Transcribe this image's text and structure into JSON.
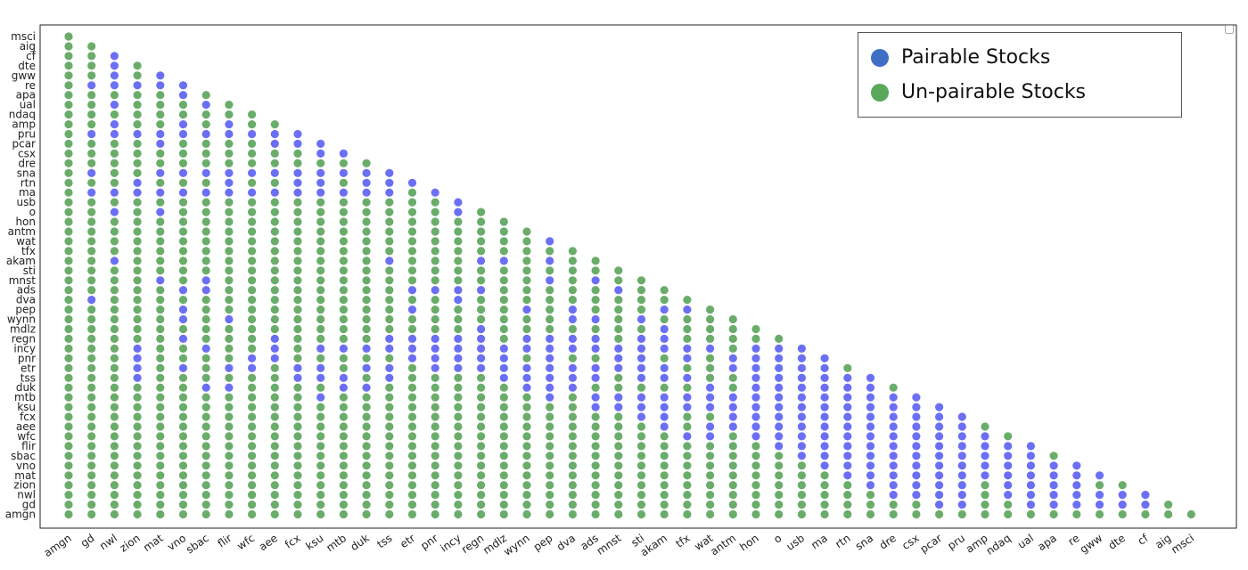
{
  "chart_data": {
    "type": "scatter",
    "title": "",
    "xlabel": "",
    "ylabel": "",
    "grid": false,
    "legend_placement": "top-right",
    "x_categories": [
      "amgn",
      "gd",
      "nwl",
      "zion",
      "mat",
      "vno",
      "sbac",
      "flir",
      "wfc",
      "aee",
      "fcx",
      "ksu",
      "mtb",
      "duk",
      "tss",
      "etr",
      "pnr",
      "incy",
      "regn",
      "mdlz",
      "wynn",
      "pep",
      "dva",
      "ads",
      "mnst",
      "sti",
      "akam",
      "tfx",
      "wat",
      "antm",
      "hon",
      "o",
      "usb",
      "ma",
      "rtn",
      "sna",
      "dre",
      "csx",
      "pcar",
      "pru",
      "amp",
      "ndaq",
      "ual",
      "apa",
      "re",
      "gww",
      "dte",
      "cf",
      "aig",
      "msci"
    ],
    "y_categories_top_to_bottom": [
      "msci",
      "aig",
      "cf",
      "dte",
      "gww",
      "re",
      "apa",
      "ual",
      "ndaq",
      "amp",
      "pru",
      "pcar",
      "csx",
      "dre",
      "sna",
      "rtn",
      "ma",
      "usb",
      "o",
      "hon",
      "antm",
      "wat",
      "tfx",
      "akam",
      "sti",
      "mnst",
      "ads",
      "dva",
      "pep",
      "wynn",
      "mdlz",
      "regn",
      "incy",
      "pnr",
      "etr",
      "tss",
      "duk",
      "mtb",
      "ksu",
      "fcx",
      "aee",
      "wfc",
      "flir",
      "sbac",
      "vno",
      "mat",
      "zion",
      "nwl",
      "gd",
      "amgn"
    ],
    "series": [
      {
        "name": "Pairable Stocks",
        "color": "#6b6ff5"
      },
      {
        "name": "Un-pairable Stocks",
        "color": "#6aad6a"
      }
    ],
    "structure": "lower-triangular: column i shows rows amgn..(reverse-pair of column)",
    "pairable_rows_by_column": {
      "gd": [
        "re",
        "pru",
        "sna",
        "ma",
        "dva"
      ],
      "nwl": [
        "cf",
        "dte",
        "gww",
        "re",
        "ual",
        "amp",
        "pru",
        "ma",
        "o",
        "akam"
      ],
      "zion": [
        "re",
        "pru",
        "rtn",
        "ma",
        "incy",
        "pnr",
        "etr",
        "tss"
      ],
      "mat": [
        "dte",
        "gww",
        "re",
        "pru",
        "pcar",
        "sna",
        "ma",
        "o",
        "mnst"
      ],
      "vno": [
        "re",
        "apa",
        "amp",
        "pru",
        "sna",
        "ma",
        "ads",
        "pep",
        "wynn",
        "regn",
        "etr"
      ],
      "sbac": [
        "ual",
        "pru",
        "sna",
        "ma",
        "ads",
        "mnst",
        "incy",
        "duk"
      ],
      "flir": [
        "apa",
        "amp",
        "pru",
        "sna",
        "rtn",
        "ma",
        "wynn",
        "etr",
        "duk"
      ],
      "wfc": [
        "pru",
        "sna",
        "ma",
        "etr",
        "pnr"
      ],
      "aee": [
        "pru",
        "pcar",
        "sna",
        "ma",
        "regn",
        "incy",
        "pnr"
      ],
      "fcx": [
        "pru",
        "pcar",
        "sna",
        "rtn",
        "ma",
        "etr",
        "tss"
      ],
      "ksu": [
        "pcar",
        "csx",
        "sna",
        "rtn",
        "ma",
        "incy",
        "etr",
        "tss",
        "mtb"
      ],
      "mtb": [
        "pcar",
        "csx",
        "sna",
        "ma",
        "incy",
        "tss",
        "duk"
      ],
      "duk": [
        "sna",
        "rtn",
        "ma",
        "incy",
        "etr",
        "duk"
      ],
      "tss": [
        "sna",
        "rtn",
        "ma",
        "akam",
        "regn",
        "incy",
        "etr",
        "tss"
      ],
      "etr": [
        "rtn",
        "ads",
        "pep",
        "regn",
        "incy",
        "pnr"
      ],
      "pnr": [
        "ma",
        "ads",
        "regn",
        "incy",
        "pnr",
        "etr"
      ],
      "incy": [
        "usb",
        "o",
        "ads",
        "dva",
        "regn",
        "incy",
        "pnr",
        "etr"
      ],
      "regn": [
        "akam",
        "ads",
        "mdlz",
        "regn",
        "incy",
        "pnr",
        "etr"
      ],
      "mdlz": [
        "akam",
        "incy",
        "pnr",
        "etr",
        "tss"
      ],
      "wynn": [
        "pep",
        "regn",
        "incy",
        "etr",
        "tss",
        "duk"
      ],
      "pep": [
        "wat",
        "akam",
        "mnst",
        "regn",
        "incy",
        "pnr",
        "etr",
        "tss",
        "duk",
        "mtb"
      ],
      "dva": [
        "pep",
        "wynn",
        "regn",
        "incy",
        "etr",
        "tss",
        "duk"
      ],
      "ads": [
        "mnst",
        "wynn",
        "regn",
        "incy",
        "etr",
        "tss",
        "mtb",
        "ksu"
      ],
      "mnst": [
        "ads",
        "incy",
        "pnr",
        "etr",
        "mtb",
        "ksu"
      ],
      "sti": [
        "wynn",
        "regn",
        "incy",
        "pnr",
        "etr",
        "tss",
        "mtb",
        "ksu",
        "fcx"
      ],
      "akam": [
        "pep",
        "mdlz",
        "regn",
        "incy",
        "etr",
        "tss",
        "mtb",
        "ksu",
        "fcx",
        "aee"
      ],
      "tfx": [
        "pep",
        "incy",
        "pnr",
        "tss",
        "mtb",
        "ksu",
        "wfc"
      ],
      "wat": [
        "dva",
        "incy",
        "duk",
        "mtb",
        "ksu",
        "aee",
        "wfc"
      ],
      "antm": [
        "pnr",
        "etr",
        "mtb",
        "ksu",
        "fcx",
        "aee"
      ],
      "hon": [
        "incy",
        "pnr",
        "etr",
        "tss",
        "duk",
        "mtb",
        "ksu",
        "fcx",
        "aee",
        "wfc"
      ],
      "o": [
        "incy",
        "pnr",
        "etr",
        "tss",
        "duk",
        "mtb",
        "ksu",
        "fcx",
        "aee",
        "wfc",
        "flir"
      ],
      "usb": [
        "incy",
        "pnr",
        "etr",
        "tss",
        "duk",
        "mtb",
        "ksu",
        "fcx",
        "aee",
        "wfc",
        "flir",
        "sbac"
      ],
      "ma": [
        "pnr",
        "etr",
        "tss",
        "duk",
        "mtb",
        "ksu",
        "fcx",
        "aee",
        "wfc",
        "flir",
        "sbac",
        "vno"
      ],
      "rtn": [
        "tss",
        "duk",
        "mtb",
        "ksu",
        "fcx",
        "aee",
        "wfc",
        "flir",
        "sbac",
        "vno",
        "mat"
      ],
      "sna": [
        "tss",
        "duk",
        "mtb",
        "ksu",
        "fcx",
        "aee",
        "wfc",
        "flir",
        "sbac",
        "vno",
        "mat",
        "zion"
      ],
      "dre": [
        "mtb",
        "ksu",
        "fcx",
        "aee",
        "wfc",
        "flir",
        "sbac",
        "vno",
        "mat",
        "zion",
        "nwl"
      ],
      "csx": [
        "mtb",
        "ksu",
        "fcx",
        "aee",
        "wfc",
        "flir",
        "sbac",
        "vno",
        "mat",
        "zion",
        "nwl"
      ],
      "pcar": [
        "mtb",
        "ksu",
        "fcx",
        "aee",
        "wfc",
        "flir",
        "sbac",
        "vno",
        "mat",
        "zion",
        "nwl",
        "gd"
      ],
      "pru": [
        "ksu",
        "fcx",
        "aee",
        "wfc",
        "flir",
        "sbac",
        "vno",
        "mat",
        "zion",
        "nwl",
        "gd"
      ],
      "amp": [
        "wfc",
        "flir",
        "sbac",
        "vno",
        "mat"
      ],
      "ndaq": [
        "flir",
        "sbac",
        "vno",
        "mat",
        "zion",
        "nwl"
      ],
      "ual": [
        "flir",
        "sbac",
        "vno",
        "mat",
        "zion",
        "nwl",
        "gd"
      ],
      "apa": [
        "vno",
        "mat",
        "zion",
        "nwl",
        "gd"
      ],
      "re": [
        "vno",
        "mat",
        "zion",
        "nwl",
        "gd"
      ],
      "gww": [
        "mat",
        "nwl",
        "gd"
      ],
      "dte": [
        "nwl",
        "gd"
      ],
      "cf": [
        "nwl",
        "gd"
      ]
    }
  }
}
